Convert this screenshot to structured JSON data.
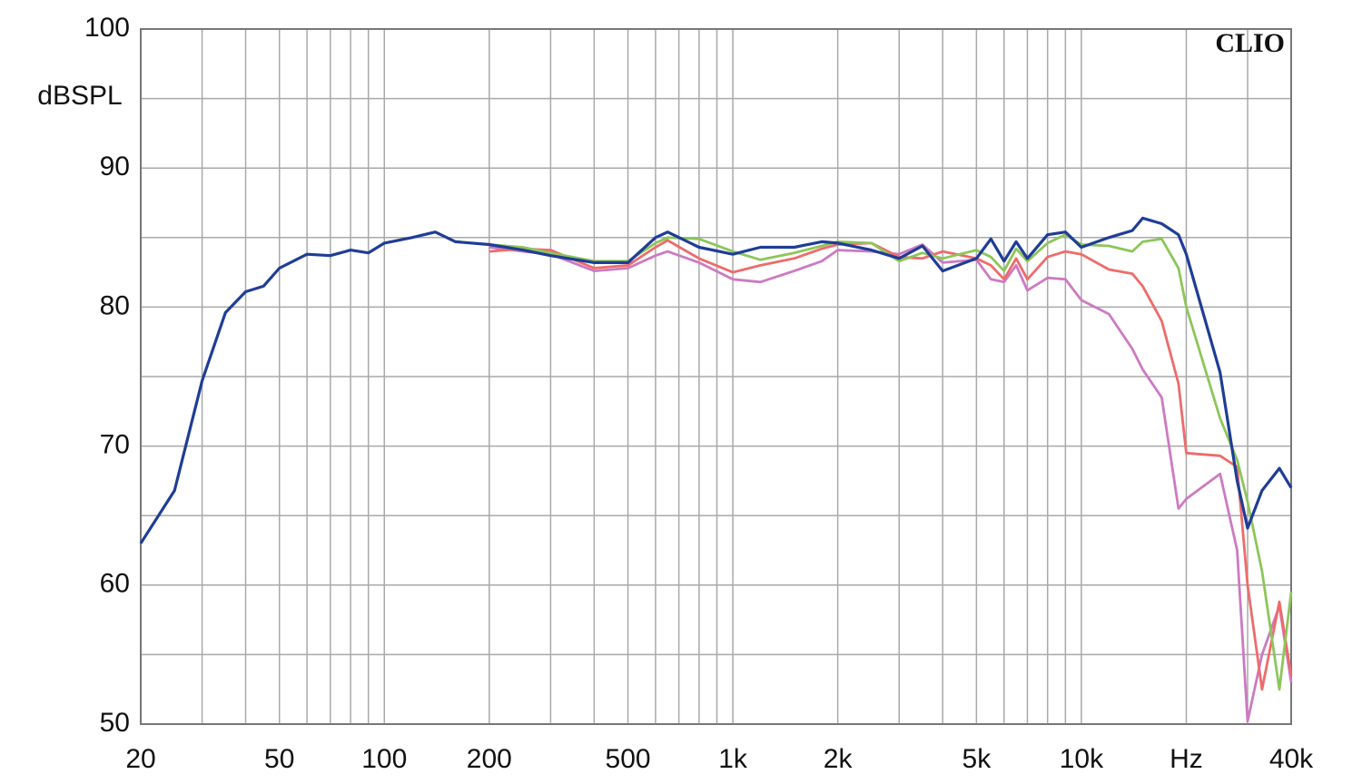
{
  "chart_data": {
    "type": "line",
    "y_label": "dBSPL",
    "brand": "CLIO",
    "log_x": true,
    "grid": true,
    "xlim": [
      20,
      40000
    ],
    "ylim": [
      50,
      100
    ],
    "xticks": [
      20,
      50,
      100,
      200,
      500,
      {
        "value": 1000,
        "label": "1k"
      },
      {
        "value": 2000,
        "label": "2k"
      },
      {
        "value": 5000,
        "label": "5k"
      },
      {
        "value": 10000,
        "label": "10k"
      },
      {
        "value": 20000,
        "label": "Hz"
      },
      {
        "value": 40000,
        "label": "40k"
      }
    ],
    "xminorticks": [
      30,
      40,
      60,
      70,
      80,
      90,
      300,
      400,
      600,
      700,
      800,
      900,
      3000,
      4000,
      6000,
      7000,
      8000,
      9000,
      30000
    ],
    "yticks": [
      50,
      60,
      70,
      80,
      90,
      100
    ],
    "yminorticks": [
      55,
      65,
      75,
      85,
      95
    ],
    "x": [
      20,
      25,
      30,
      35,
      40,
      45,
      50,
      60,
      70,
      80,
      90,
      100,
      120,
      140,
      160,
      200,
      250,
      300,
      400,
      500,
      600,
      650,
      800,
      1000,
      1200,
      1500,
      1800,
      2000,
      2500,
      3000,
      3500,
      4000,
      5000,
      5500,
      6000,
      6500,
      7000,
      8000,
      9000,
      10000,
      12000,
      14000,
      15000,
      17000,
      19000,
      20000,
      25000,
      28000,
      30000,
      33000,
      37000,
      40000
    ],
    "series": [
      {
        "color": "#1f3d96",
        "values": [
          63,
          66.8,
          74.7,
          79.6,
          81.1,
          81.5,
          82.8,
          83.8,
          83.7,
          84.1,
          83.9,
          84.6,
          85.0,
          85.4,
          84.7,
          84.5,
          84.1,
          83.7,
          83.2,
          83.2,
          85.0,
          85.4,
          84.3,
          83.8,
          84.3,
          84.3,
          84.7,
          84.6,
          84.1,
          83.5,
          84.4,
          82.6,
          83.5,
          84.9,
          83.3,
          84.7,
          83.5,
          85.2,
          85.4,
          84.3,
          85.0,
          85.5,
          86.4,
          86.0,
          85.2,
          83.8,
          75.3,
          67.5,
          64.1,
          66.8,
          68.4,
          67.0
        ]
      },
      {
        "color": "#8cc65a",
        "values": [
          null,
          null,
          null,
          null,
          null,
          null,
          null,
          null,
          null,
          null,
          null,
          null,
          null,
          null,
          null,
          84.5,
          84.3,
          83.9,
          83.3,
          83.3,
          84.6,
          85.0,
          84.9,
          84.0,
          83.4,
          83.9,
          84.4,
          84.7,
          84.6,
          83.3,
          83.9,
          83.5,
          84.1,
          83.6,
          82.6,
          84.2,
          83.3,
          84.6,
          85.2,
          84.5,
          84.4,
          84.0,
          84.7,
          84.9,
          82.8,
          80.0,
          72.0,
          69.0,
          66.0,
          61.0,
          52.5,
          59.5
        ]
      },
      {
        "color": "#ee6b6b",
        "values": [
          null,
          null,
          null,
          null,
          null,
          null,
          null,
          null,
          null,
          null,
          null,
          null,
          null,
          null,
          null,
          84.0,
          84.2,
          84.1,
          82.8,
          83.0,
          84.3,
          84.8,
          83.5,
          82.5,
          83.0,
          83.5,
          84.2,
          84.5,
          84.6,
          83.6,
          83.5,
          84.0,
          83.5,
          83.0,
          82.0,
          83.5,
          82.0,
          83.6,
          84.0,
          83.8,
          82.7,
          82.4,
          81.5,
          79.0,
          74.5,
          69.5,
          69.3,
          68.5,
          60.0,
          52.5,
          58.8,
          53.5
        ]
      },
      {
        "color": "#cc7ac2",
        "values": [
          null,
          null,
          null,
          null,
          null,
          null,
          null,
          null,
          null,
          null,
          null,
          null,
          null,
          null,
          null,
          84.3,
          84.0,
          83.8,
          82.6,
          82.8,
          83.7,
          84.0,
          83.2,
          82.0,
          81.8,
          82.6,
          83.3,
          84.1,
          84.0,
          83.8,
          84.5,
          83.2,
          83.4,
          82.0,
          81.8,
          83.0,
          81.2,
          82.1,
          82.0,
          80.5,
          79.5,
          77.0,
          75.5,
          73.5,
          65.5,
          66.2,
          68.0,
          62.5,
          50.2,
          55.0,
          58.5,
          53.0
        ]
      }
    ]
  }
}
